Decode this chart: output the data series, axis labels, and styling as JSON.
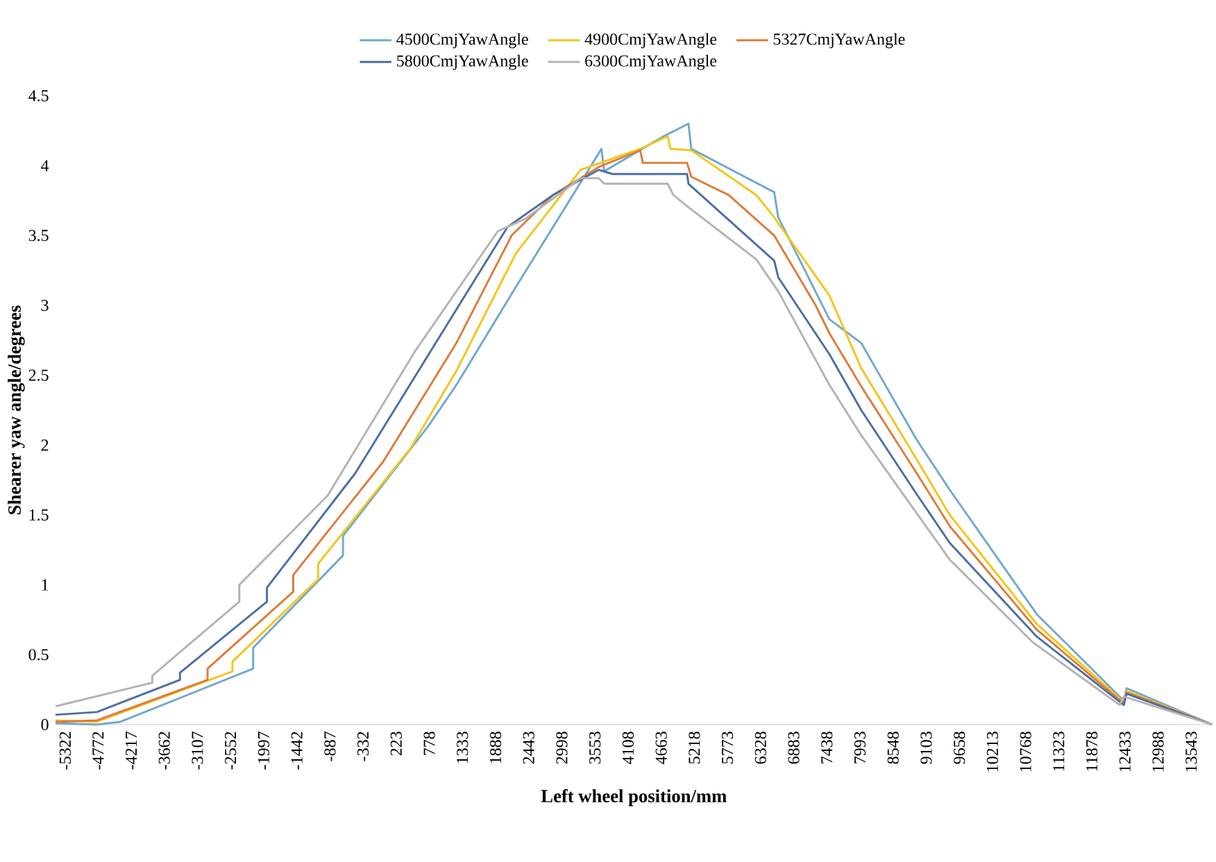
{
  "chart_data": {
    "type": "line",
    "xlabel": "Left wheel position/mm",
    "ylabel": "Shearer yaw angle/degrees",
    "legend": "top",
    "xlim": [
      -5484,
      13896
    ],
    "ylim": [
      0,
      4.5
    ],
    "xticks": [
      -5322,
      -4772,
      -4217,
      -3662,
      -3107,
      -2552,
      -1997,
      -1442,
      -887,
      -332,
      223,
      778,
      1333,
      1888,
      2443,
      2998,
      3553,
      4108,
      4663,
      5218,
      5773,
      6328,
      6883,
      7438,
      7993,
      8548,
      9103,
      9658,
      10213,
      10768,
      11323,
      11878,
      12433,
      12988,
      13543
    ],
    "yticks": [
      0,
      0.5,
      1,
      1.5,
      2,
      2.5,
      3,
      3.5,
      4,
      4.5
    ],
    "series": [
      {
        "name": "4500CmjYawAngle",
        "color": "#70a8d0",
        "x": [
          -5484,
          -4790,
          -4396,
          -2173,
          -2173,
          -668,
          -668,
          768,
          1231,
          2226,
          3662,
          3708,
          4704,
          5120,
          5167,
          6556,
          6625,
          7482,
          8015,
          8941,
          9497,
          10955,
          12414,
          12460,
          13890
        ],
        "values": [
          0.01,
          0,
          0.02,
          0.4,
          0.55,
          1.21,
          1.35,
          2.14,
          2.43,
          3.13,
          4.12,
          3.96,
          4.21,
          4.3,
          4.12,
          3.81,
          3.63,
          2.9,
          2.73,
          2.04,
          1.68,
          0.79,
          0.17,
          0.26,
          0
        ]
      },
      {
        "name": "4900CmjYawAngle",
        "color": "#f5c518",
        "x": [
          -5484,
          -4790,
          -2520,
          -2520,
          -1085,
          -1085,
          467,
          1231,
          2226,
          3314,
          4310,
          4773,
          4819,
          5167,
          6255,
          6556,
          7482,
          8015,
          8941,
          9497,
          10955,
          12414,
          12460,
          13890
        ],
        "values": [
          0.03,
          0.02,
          0.38,
          0.45,
          1.04,
          1.15,
          1.98,
          2.53,
          3.37,
          3.97,
          4.12,
          4.21,
          4.12,
          4.11,
          3.79,
          3.63,
          3.07,
          2.55,
          1.9,
          1.5,
          0.72,
          0.16,
          0.24,
          0
        ]
      },
      {
        "name": "5327CmjYawAngle",
        "color": "#e07b39",
        "x": [
          -5484,
          -4790,
          -2937,
          -2937,
          -1502,
          -1502,
          3,
          1231,
          2157,
          2851,
          3615,
          4310,
          4356,
          5097,
          5167,
          5792,
          6556,
          7251,
          7482,
          8015,
          8941,
          9497,
          10955,
          12414,
          12460,
          13890
        ],
        "values": [
          0.02,
          0.03,
          0.32,
          0.4,
          0.95,
          1.07,
          1.88,
          2.73,
          3.5,
          3.79,
          3.99,
          4.11,
          4.02,
          4.02,
          3.92,
          3.79,
          3.5,
          3.0,
          2.8,
          2.42,
          1.8,
          1.42,
          0.68,
          0.15,
          0.23,
          0
        ]
      },
      {
        "name": "5800CmjYawAngle",
        "color": "#4a6fa5",
        "x": [
          -5484,
          -4790,
          -3400,
          -3400,
          -1942,
          -1942,
          -460,
          1231,
          2087,
          2851,
          3615,
          3847,
          5097,
          5120,
          6556,
          6625,
          7482,
          8015,
          8941,
          9497,
          10955,
          12414,
          12460,
          13890
        ],
        "values": [
          0.07,
          0.09,
          0.32,
          0.37,
          0.88,
          0.98,
          1.8,
          2.97,
          3.56,
          3.79,
          3.97,
          3.94,
          3.94,
          3.87,
          3.32,
          3.2,
          2.65,
          2.25,
          1.65,
          1.3,
          0.63,
          0.14,
          0.22,
          0
        ]
      },
      {
        "name": "6300CmjYawAngle",
        "color": "#b3b3b3",
        "x": [
          -5484,
          -3863,
          -3863,
          -2405,
          -2405,
          -923,
          536,
          1231,
          1925,
          2388,
          3314,
          3615,
          3708,
          4773,
          4866,
          5097,
          6255,
          6625,
          7482,
          8015,
          9497,
          10886,
          12344,
          12414,
          13890
        ],
        "values": [
          0.13,
          0.3,
          0.35,
          0.88,
          1.0,
          1.64,
          2.67,
          3.1,
          3.53,
          3.62,
          3.91,
          3.91,
          3.87,
          3.87,
          3.79,
          3.71,
          3.33,
          3.1,
          2.43,
          2.07,
          1.18,
          0.59,
          0.14,
          0.2,
          0
        ]
      }
    ]
  }
}
